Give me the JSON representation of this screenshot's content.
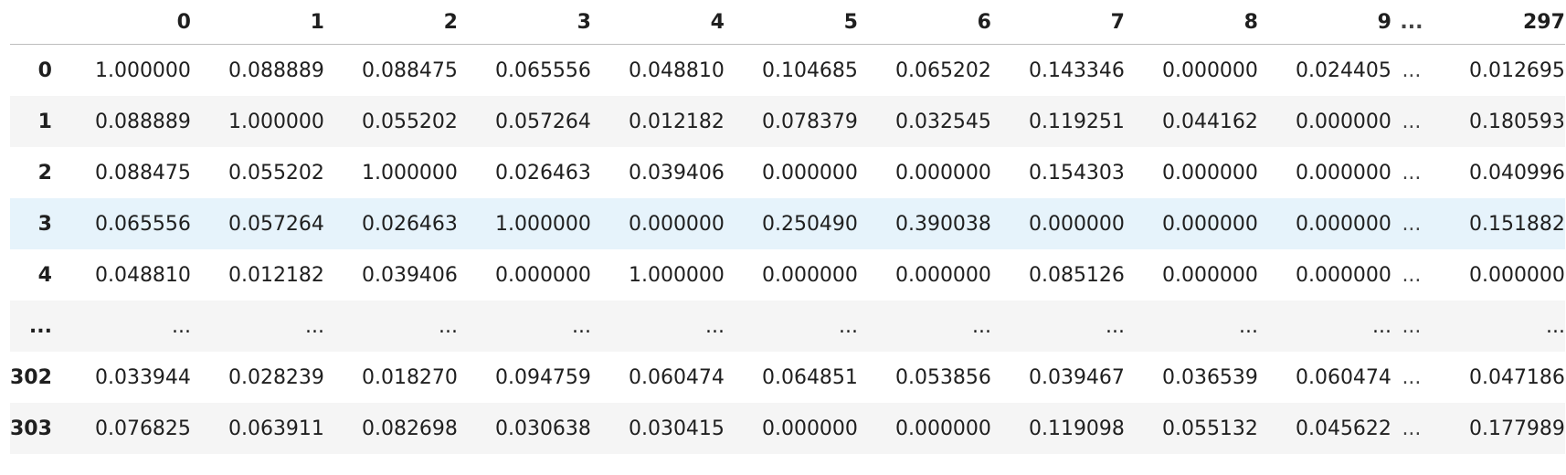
{
  "table": {
    "columns": [
      "0",
      "1",
      "2",
      "3",
      "4",
      "5",
      "6",
      "7",
      "8",
      "9",
      "...",
      "297"
    ],
    "rows": [
      {
        "index": "0",
        "hover": false,
        "cells": [
          "1.000000",
          "0.088889",
          "0.088475",
          "0.065556",
          "0.048810",
          "0.104685",
          "0.065202",
          "0.143346",
          "0.000000",
          "0.024405",
          "...",
          "0.012695"
        ]
      },
      {
        "index": "1",
        "hover": false,
        "cells": [
          "0.088889",
          "1.000000",
          "0.055202",
          "0.057264",
          "0.012182",
          "0.078379",
          "0.032545",
          "0.119251",
          "0.044162",
          "0.000000",
          "...",
          "0.180593"
        ]
      },
      {
        "index": "2",
        "hover": false,
        "cells": [
          "0.088475",
          "0.055202",
          "1.000000",
          "0.026463",
          "0.039406",
          "0.000000",
          "0.000000",
          "0.154303",
          "0.000000",
          "0.000000",
          "...",
          "0.040996"
        ]
      },
      {
        "index": "3",
        "hover": true,
        "cells": [
          "0.065556",
          "0.057264",
          "0.026463",
          "1.000000",
          "0.000000",
          "0.250490",
          "0.390038",
          "0.000000",
          "0.000000",
          "0.000000",
          "...",
          "0.151882"
        ]
      },
      {
        "index": "4",
        "hover": false,
        "cells": [
          "0.048810",
          "0.012182",
          "0.039406",
          "0.000000",
          "1.000000",
          "0.000000",
          "0.000000",
          "0.085126",
          "0.000000",
          "0.000000",
          "...",
          "0.000000"
        ]
      },
      {
        "index": "...",
        "hover": false,
        "cells": [
          "...",
          "...",
          "...",
          "...",
          "...",
          "...",
          "...",
          "...",
          "...",
          "...",
          "...",
          "..."
        ]
      },
      {
        "index": "302",
        "hover": false,
        "cells": [
          "0.033944",
          "0.028239",
          "0.018270",
          "0.094759",
          "0.060474",
          "0.064851",
          "0.053856",
          "0.039467",
          "0.036539",
          "0.060474",
          "...",
          "0.047186"
        ]
      },
      {
        "index": "303",
        "hover": false,
        "cells": [
          "0.076825",
          "0.063911",
          "0.082698",
          "0.030638",
          "0.030415",
          "0.000000",
          "0.000000",
          "0.119098",
          "0.055132",
          "0.045622",
          "...",
          "0.177989"
        ]
      }
    ]
  },
  "colors": {
    "text": "#1f1f1f",
    "stripe": "#f5f5f5",
    "hover": "#e6f3fb",
    "header_rule": "#bdbdbd"
  }
}
